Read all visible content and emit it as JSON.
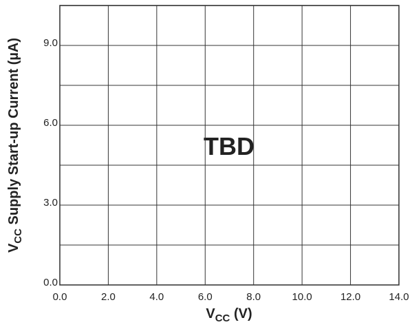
{
  "chart_data": {
    "type": "line",
    "xlabel": {
      "main": "V",
      "sub": "CC",
      "rest": " (V)"
    },
    "ylabel": {
      "main": "V",
      "sub": "CC",
      "rest": " Supply Start-up Current (µA)"
    },
    "annotation": "TBD",
    "xlim": [
      0,
      14
    ],
    "xticks": [
      {
        "value": 0,
        "label": "0.0"
      },
      {
        "value": 2,
        "label": "2.0"
      },
      {
        "value": 4,
        "label": "4.0"
      },
      {
        "value": 6,
        "label": "6.0"
      },
      {
        "value": 8,
        "label": "8.0"
      },
      {
        "value": 10,
        "label": "10.0"
      },
      {
        "value": 12,
        "label": "12.0"
      },
      {
        "value": 14,
        "label": "14.0"
      }
    ],
    "ylim": [
      0,
      10.5
    ],
    "yticks": [
      {
        "value": 0,
        "label": "0.0"
      },
      {
        "value": 3,
        "label": "3.0"
      },
      {
        "value": 6,
        "label": "6.0"
      },
      {
        "value": 9,
        "label": "9.0"
      }
    ],
    "y_minor_ticks": [
      1.5,
      4.5,
      7.5
    ],
    "grid": true,
    "series": []
  }
}
